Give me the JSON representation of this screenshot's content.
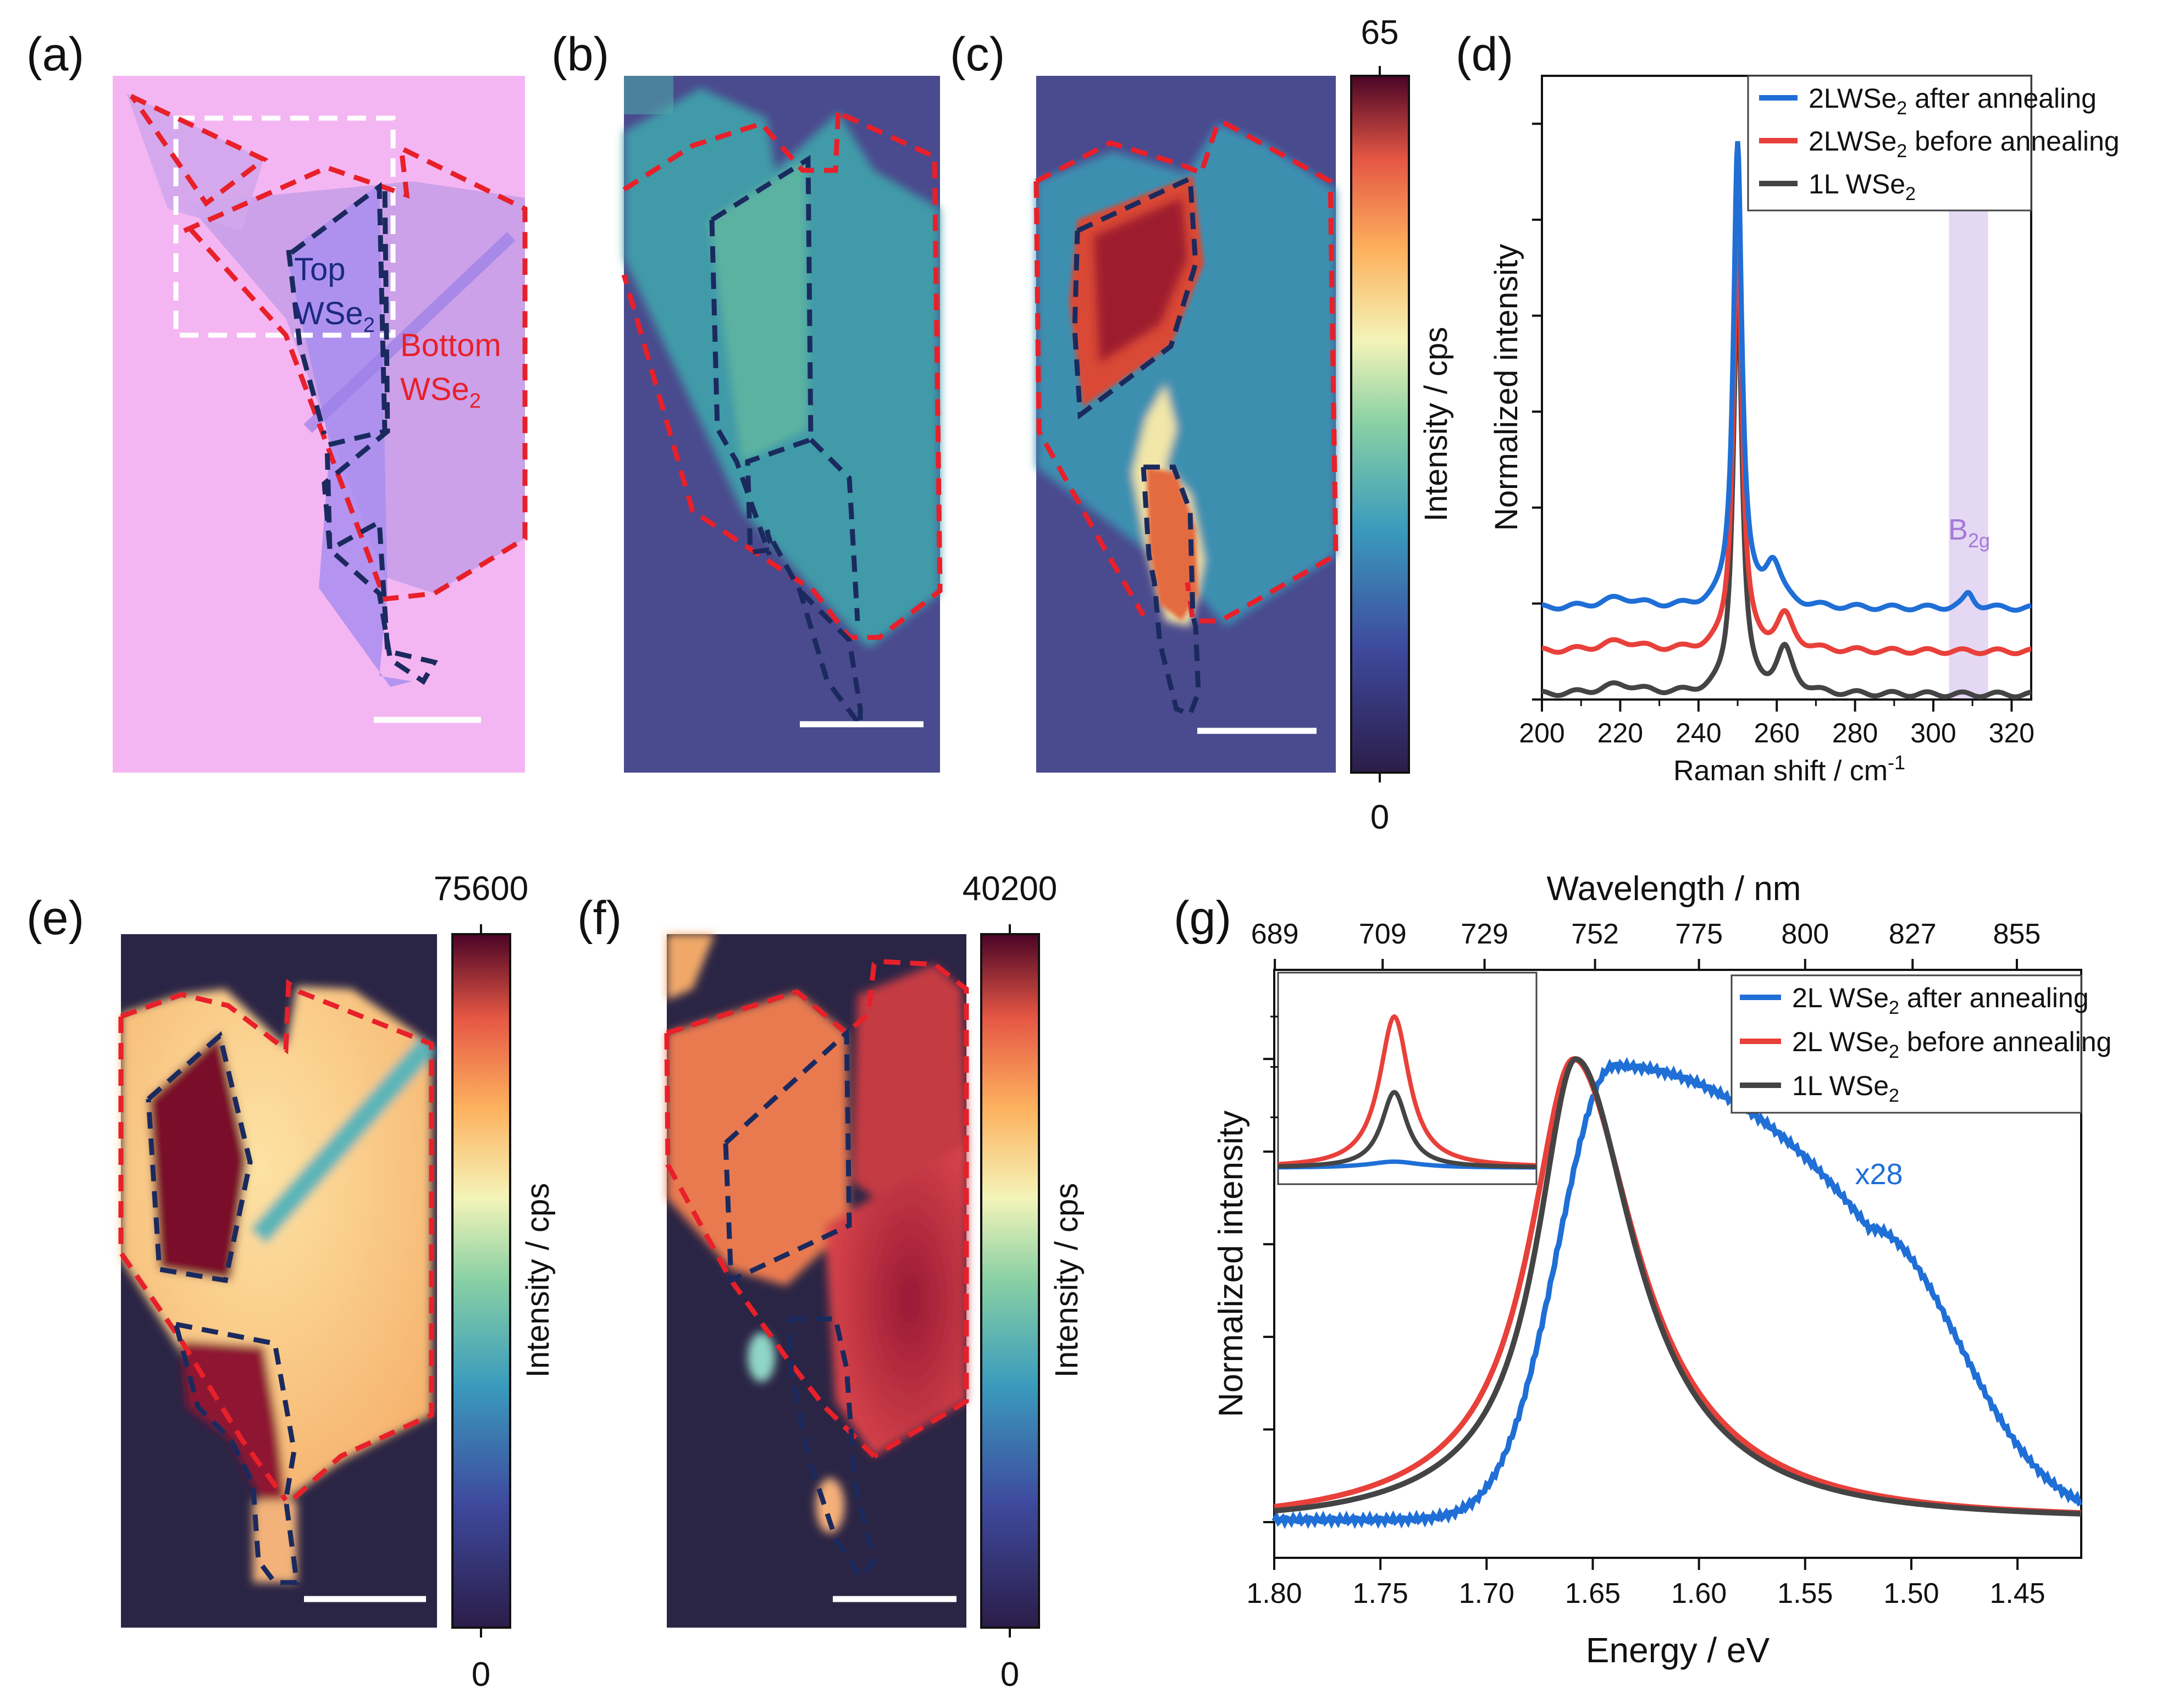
{
  "panels": {
    "a": {
      "label": "(a)",
      "top": "Top",
      "top2": "WSe",
      "top2_sub": "2",
      "bottom": "Bottom",
      "bottom2": "WSe",
      "bottom2_sub": "2"
    },
    "b": {
      "label": "(b)"
    },
    "c": {
      "label": "(c)",
      "cb_max": "65",
      "cb_min": "0",
      "cb_title": "Intensity / cps"
    },
    "d": {
      "label": "(d)"
    },
    "e": {
      "label": "(e)",
      "cb_max": "75600",
      "cb_min": "0",
      "cb_title": "Intensity / cps"
    },
    "f": {
      "label": "(f)",
      "cb_max": "40200",
      "cb_min": "0",
      "cb_title": "Intensity / cps"
    },
    "g": {
      "label": "(g)"
    }
  },
  "colors": {
    "blue": "#1f6fd6",
    "red": "#e8403a",
    "gray": "#444444",
    "pink": "#f4b6f2",
    "b2g_band": "#dccbf0"
  },
  "chart_data": [
    {
      "type": "line",
      "title": "",
      "xlabel": "Raman shift / cm",
      "xlabel_sup": "-1",
      "ylabel": "Normalized intensity",
      "xlim": [
        200,
        325
      ],
      "ylim": [
        0,
        1.3
      ],
      "xticks": [
        "200",
        "220",
        "240",
        "260",
        "280",
        "300",
        "320"
      ],
      "legend": [
        {
          "text": "2LWSe",
          "sub": "2",
          "tail": " after annealing",
          "color": "#1f6fd6"
        },
        {
          "text": "2LWSe",
          "sub": "2",
          "tail": " before annealing",
          "color": "#e8403a"
        },
        {
          "text": "1L WSe",
          "sub": "2",
          "tail": "",
          "color": "#444444"
        }
      ],
      "annotation": {
        "text": "B",
        "sub": "2g",
        "x": 309
      },
      "shaded_band": [
        304,
        314
      ],
      "peaks": [
        {
          "name": "2L after annealing",
          "baseline": 0.19,
          "main_peak_x": 250,
          "main_peak_y": 1.16,
          "shoulder_x": 259,
          "shoulder_y": 0.28,
          "b2g_x": 309,
          "b2g_y": 0.22
        },
        {
          "name": "2L before annealing",
          "baseline": 0.1,
          "main_peak_x": 250,
          "main_peak_y": 1.0,
          "shoulder_x": 262,
          "shoulder_y": 0.17
        },
        {
          "name": "1L",
          "baseline": 0.01,
          "main_peak_x": 250,
          "main_peak_y": 0.88,
          "shoulder_x": 262,
          "shoulder_y": 0.1
        }
      ]
    },
    {
      "type": "line",
      "title": "",
      "xlabel": "Energy / eV",
      "x2label": "Wavelength / nm",
      "ylabel": "Normalized intensity",
      "xlim": [
        1.8,
        1.42
      ],
      "ylim": [
        0,
        1.05
      ],
      "xticks": [
        "1.80",
        "1.75",
        "1.70",
        "1.65",
        "1.60",
        "1.55",
        "1.50",
        "1.45"
      ],
      "x2ticks": [
        "689",
        "709",
        "729",
        "752",
        "775",
        "800",
        "827",
        "855"
      ],
      "legend": [
        {
          "text": "2L WSe",
          "sub": "2",
          "tail": " after annealing",
          "color": "#1f6fd6"
        },
        {
          "text": "2L WSe",
          "sub": "2",
          "tail": " before annealing",
          "color": "#e8403a"
        },
        {
          "text": "1L WSe",
          "sub": "2",
          "tail": "",
          "color": "#444444"
        }
      ],
      "annotation": "x28",
      "series": [
        {
          "name": "2L after annealing (x28)",
          "peak_x": 1.635,
          "peak_y": 1.0
        },
        {
          "name": "2L before annealing",
          "peak_x": 1.659,
          "peak_y": 1.0
        },
        {
          "name": "1L",
          "peak_x": 1.658,
          "peak_y": 1.0
        }
      ],
      "inset": {
        "series": [
          {
            "name": "2L before annealing",
            "peak": 1.0
          },
          {
            "name": "1L",
            "peak": 0.5
          },
          {
            "name": "2L after annealing",
            "peak": 0.04
          }
        ]
      }
    }
  ]
}
